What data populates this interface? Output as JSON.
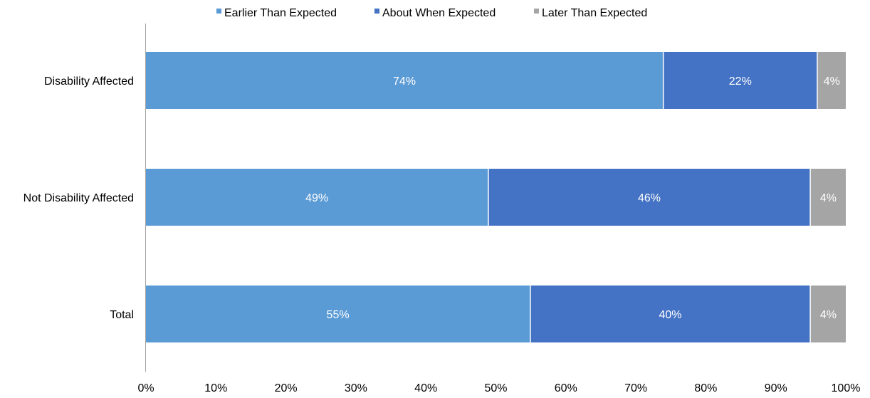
{
  "chart_data": {
    "type": "bar",
    "orientation": "horizontal",
    "stacked": true,
    "title": "",
    "xlabel": "",
    "ylabel": "",
    "xlim": [
      0,
      100
    ],
    "tick_labels": [
      "0%",
      "10%",
      "20%",
      "30%",
      "40%",
      "50%",
      "60%",
      "70%",
      "80%",
      "90%",
      "100%"
    ],
    "tick_values": [
      0,
      10,
      20,
      30,
      40,
      50,
      60,
      70,
      80,
      90,
      100
    ],
    "grid": false,
    "legend_position": "top",
    "categories": [
      "Disability Affected",
      "Not Disability Affected",
      "Total"
    ],
    "series": [
      {
        "name": "Earlier Than Expected",
        "color": "#5B9BD5",
        "values": [
          74,
          49,
          55
        ],
        "labels": [
          "74%",
          "49%",
          "55%"
        ]
      },
      {
        "name": "About When Expected",
        "color": "#4472C4",
        "values": [
          22,
          46,
          40
        ],
        "labels": [
          "22%",
          "46%",
          "40%"
        ]
      },
      {
        "name": "Later Than Expected",
        "color": "#A5A5A5",
        "values": [
          4,
          4,
          4
        ],
        "labels": [
          "4%",
          "4%",
          "4%"
        ]
      }
    ]
  }
}
